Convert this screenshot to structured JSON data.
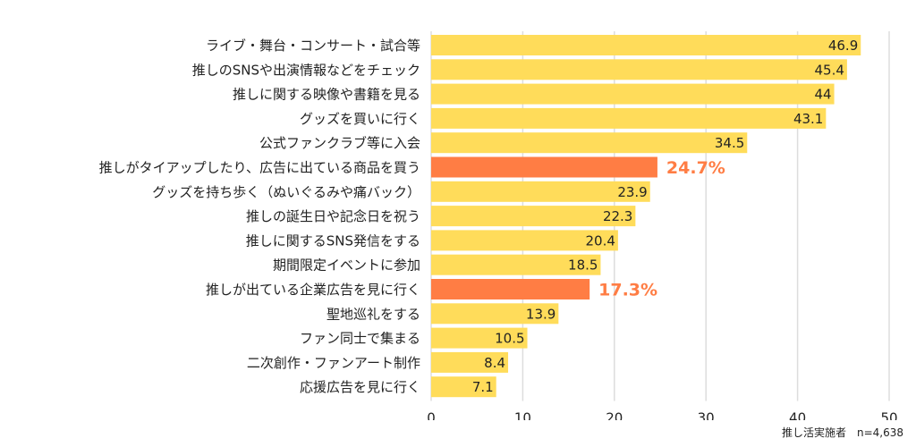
{
  "chart_data": {
    "type": "bar",
    "orientation": "horizontal",
    "categories": [
      "ライブ・舞台・コンサート・試合等",
      "推しのSNSや出演情報などをチェック",
      "推しに関する映像や書籍を見る",
      "グッズを買いに行く",
      "公式ファンクラブ等に入会",
      "推しがタイアップしたり、広告に出ている商品を買う",
      "グッズを持ち歩く（ぬいぐるみや痛バック）",
      "推しの誕生日や記念日を祝う",
      "推しに関するSNS発信をする",
      "期間限定イベントに参加",
      "推しが出ている企業広告を見に行く",
      "聖地巡礼をする",
      "ファン同士で集まる",
      "二次創作・ファンアート制作",
      "応援広告を見に行く"
    ],
    "values": [
      46.9,
      45.4,
      44,
      43.1,
      34.5,
      24.7,
      23.9,
      22.3,
      20.4,
      18.5,
      17.3,
      13.9,
      10.5,
      8.4,
      7.1
    ],
    "value_labels": [
      "46.9",
      "45.4",
      "44",
      "43.1",
      "34.5",
      "24.7%",
      "23.9",
      "22.3",
      "20.4",
      "18.5",
      "17.3%",
      "13.9",
      "10.5",
      "8.4",
      "7.1"
    ],
    "highlighted": [
      false,
      false,
      false,
      false,
      false,
      true,
      false,
      false,
      false,
      false,
      true,
      false,
      false,
      false,
      false
    ],
    "xlim": [
      0,
      50
    ],
    "xticks": [
      0,
      10,
      20,
      30,
      40,
      50
    ],
    "xtick_labels": [
      "0",
      "10",
      "20",
      "30",
      "40",
      "50"
    ],
    "grid": true,
    "title": "",
    "xlabel": "",
    "ylabel": "",
    "colors": {
      "bar": "#ffdc5a",
      "highlight": "#ff7d44",
      "grid": "#dddddd"
    }
  },
  "note": "推し活実施者　n=4,638"
}
